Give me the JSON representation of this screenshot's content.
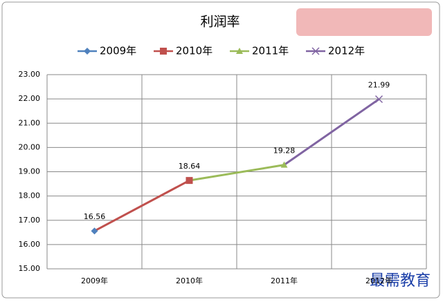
{
  "chart_data": {
    "type": "line",
    "title": "利润率",
    "categories": [
      "2009年",
      "2010年",
      "2011年",
      "2012年"
    ],
    "values": [
      16.56,
      18.64,
      19.28,
      21.99
    ],
    "series": [
      {
        "name": "2009年",
        "color": "#4f81bd",
        "marker": "diamond"
      },
      {
        "name": "2010年",
        "color": "#c0504d",
        "marker": "square"
      },
      {
        "name": "2011年",
        "color": "#9bbb59",
        "marker": "triangle"
      },
      {
        "name": "2012年",
        "color": "#8064a2",
        "marker": "x"
      }
    ],
    "ylim": [
      15,
      23
    ],
    "yticks": [
      {
        "value": 15,
        "label": "15.00"
      },
      {
        "value": 16,
        "label": "16.00"
      },
      {
        "value": 17,
        "label": "17.00"
      },
      {
        "value": 18,
        "label": "18.00"
      },
      {
        "value": 19,
        "label": "19.00"
      },
      {
        "value": 20,
        "label": "20.00"
      },
      {
        "value": 21,
        "label": "21.00"
      },
      {
        "value": 22,
        "label": "22.00"
      },
      {
        "value": 23,
        "label": "23.00"
      }
    ],
    "grid": true,
    "legend": "top",
    "watermark": "最需教育"
  }
}
